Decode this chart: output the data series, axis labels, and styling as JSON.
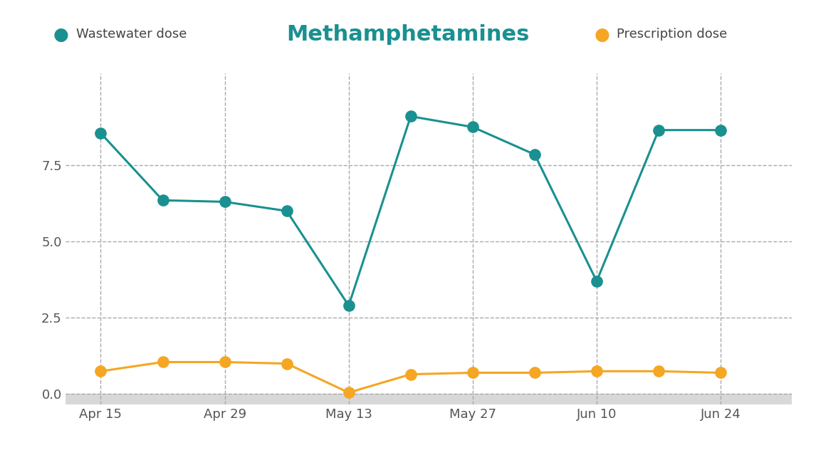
{
  "title": "Methamphetamines",
  "title_color": "#1a9090",
  "legend_wastewater": "Wastewater dose",
  "legend_prescription": "Prescription dose",
  "x_labels": [
    "Apr 15",
    "Apr 29",
    "May 13",
    "May 27",
    "Jun 10",
    "Jun 24"
  ],
  "x_ticks": [
    1,
    15,
    29,
    43,
    57,
    71
  ],
  "wastewater_x": [
    1,
    8,
    15,
    22,
    29,
    36,
    43,
    50,
    57,
    64,
    71
  ],
  "wastewater_y": [
    8.55,
    6.35,
    6.3,
    6.0,
    2.9,
    9.1,
    8.75,
    7.85,
    3.7,
    8.65,
    8.65
  ],
  "prescription_x": [
    1,
    8,
    15,
    22,
    29,
    36,
    43,
    50,
    57,
    64,
    71
  ],
  "prescription_y": [
    0.75,
    1.05,
    1.05,
    1.0,
    0.05,
    0.65,
    0.7,
    0.7,
    0.75,
    0.75,
    0.7
  ],
  "vgrid_x": [
    1,
    15,
    29,
    43,
    57,
    71
  ],
  "wastewater_color": "#1a9090",
  "prescription_color": "#f5a623",
  "yticks": [
    0.0,
    2.5,
    5.0,
    7.5
  ],
  "ylim": [
    -0.35,
    10.5
  ],
  "xlim": [
    -3,
    79
  ],
  "background_color": "#ffffff",
  "gray_band_color": "#d8d8d8",
  "grid_color": "#aaaaaa",
  "marker_size": 11,
  "linewidth": 2.2,
  "title_fontsize": 22,
  "legend_fontsize": 13,
  "tick_fontsize": 13
}
